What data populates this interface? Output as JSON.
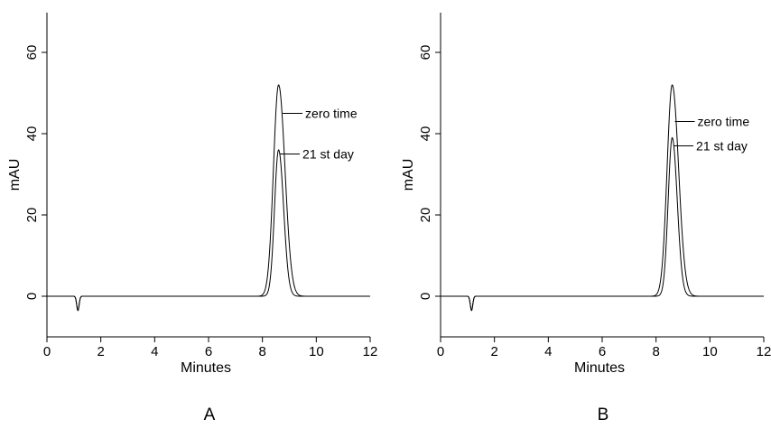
{
  "chart_data": [
    {
      "type": "line",
      "panel_label": "A",
      "xlabel": "Minutes",
      "ylabel": "mAU",
      "xlim": [
        0,
        12
      ],
      "ylim": [
        -10,
        70
      ],
      "x_ticks": [
        "0",
        "2",
        "4",
        "6",
        "8",
        "10",
        "12"
      ],
      "y_ticks": [
        "0",
        "20",
        "40",
        "60"
      ],
      "grid": false,
      "series": [
        {
          "name": "zero time",
          "retention_time": 8.6,
          "peak_height": 52
        },
        {
          "name": "21 st day",
          "retention_time": 8.6,
          "peak_height": 36
        }
      ],
      "baseline_dip": {
        "x": 1.15,
        "y": -3.5
      },
      "annotations": [
        {
          "text": "zero time",
          "x": 8.75,
          "y": 45
        },
        {
          "text": "21 st day",
          "x": 8.65,
          "y": 35
        }
      ]
    },
    {
      "type": "line",
      "panel_label": "B",
      "xlabel": "Minutes",
      "ylabel": "mAU",
      "xlim": [
        0,
        12
      ],
      "ylim": [
        -10,
        70
      ],
      "x_ticks": [
        "0",
        "2",
        "4",
        "6",
        "8",
        "10",
        "12"
      ],
      "y_ticks": [
        "0",
        "20",
        "40",
        "60"
      ],
      "grid": false,
      "series": [
        {
          "name": "zero time",
          "retention_time": 8.6,
          "peak_height": 52
        },
        {
          "name": "21 st day",
          "retention_time": 8.6,
          "peak_height": 39
        }
      ],
      "baseline_dip": {
        "x": 1.15,
        "y": -3.5
      },
      "annotations": [
        {
          "text": "zero time",
          "x": 8.7,
          "y": 43
        },
        {
          "text": "21 st day",
          "x": 8.65,
          "y": 37
        }
      ]
    }
  ]
}
